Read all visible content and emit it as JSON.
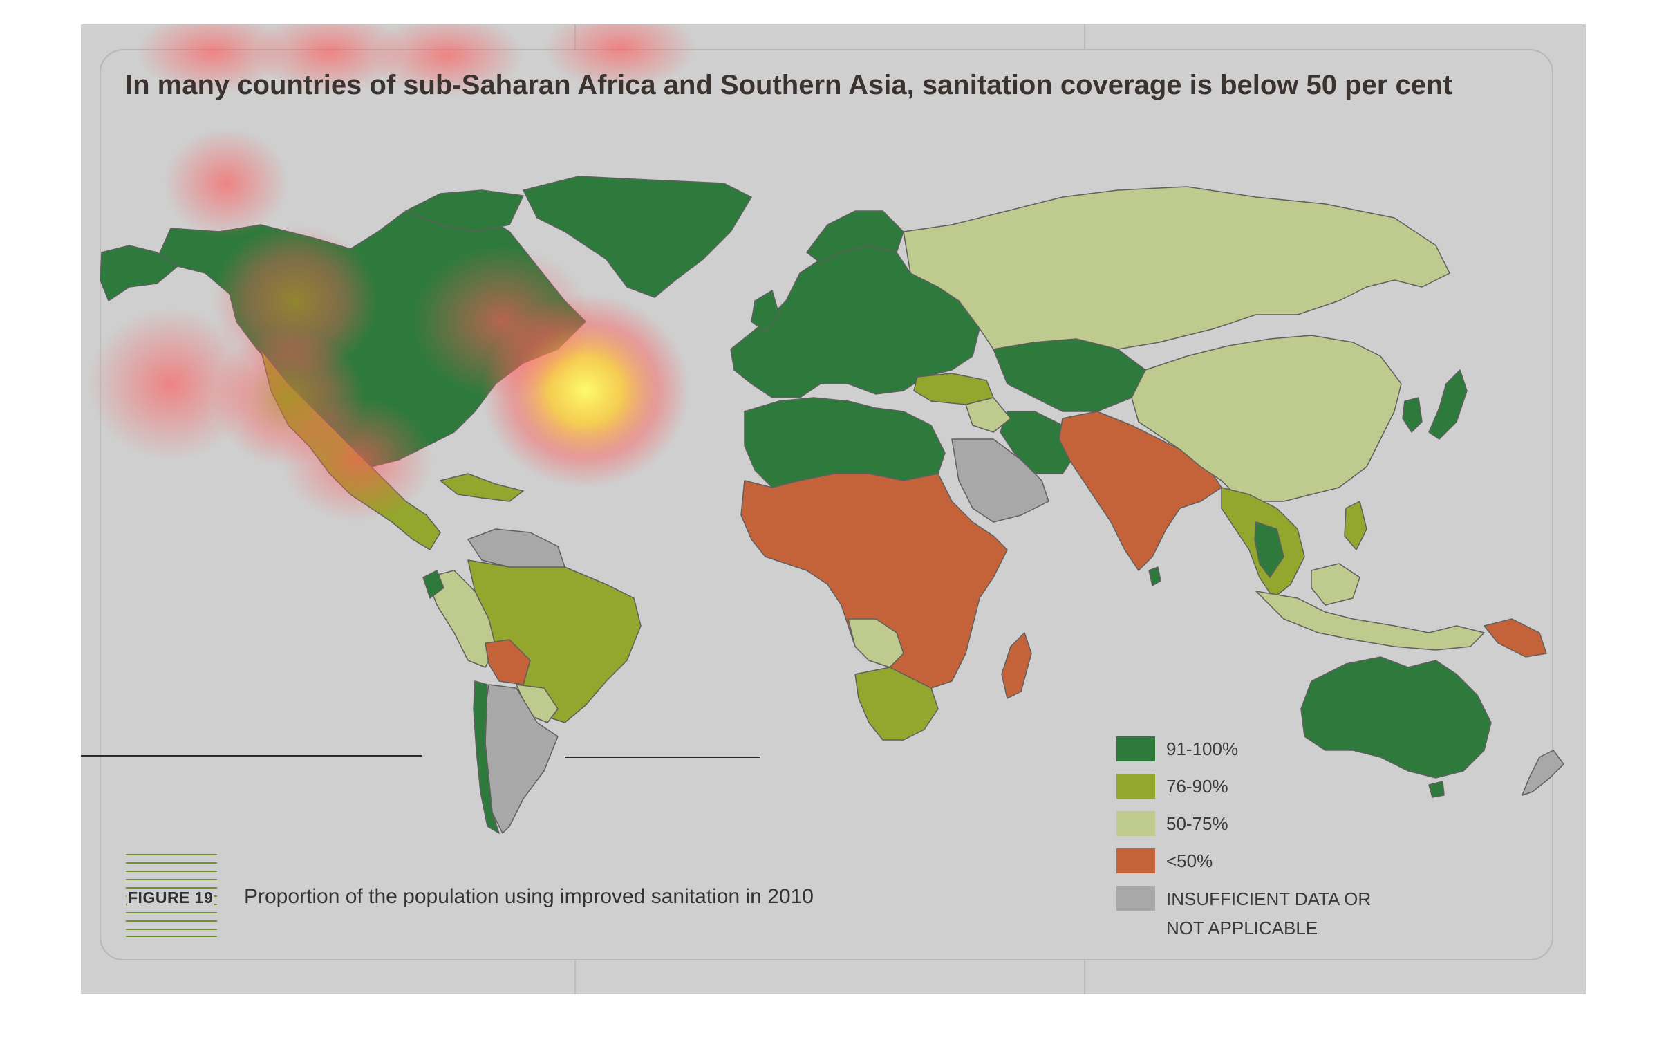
{
  "title": "In many countries of sub-Saharan Africa and Southern Asia, sanitation coverage is below 50 per cent",
  "figure": {
    "label": "FIGURE 19",
    "caption": "Proportion of the population using improved sanitation in 2010"
  },
  "legend": [
    {
      "label": "91-100%",
      "color": "#2e7a3c"
    },
    {
      "label": "76-90%",
      "color": "#93a62d"
    },
    {
      "label": "50-75%",
      "color": "#bfca8e"
    },
    {
      "label": "<50%",
      "color": "#c4633a"
    },
    {
      "label": "INSUFFICIENT DATA OR",
      "label2": "NOT APPLICABLE",
      "color": "#a8a8a8"
    }
  ],
  "colors": {
    "background": "#cfcfcf",
    "water": "#cfcfcf",
    "border": "#5f5f5f"
  },
  "regions": [
    {
      "name": "north-america",
      "category": "91-100%"
    },
    {
      "name": "greenland",
      "category": "91-100%"
    },
    {
      "name": "alaska",
      "category": "91-100%"
    },
    {
      "name": "mexico",
      "category": "76-90%"
    },
    {
      "name": "central-america",
      "category": "76-90%"
    },
    {
      "name": "venezuela-guianas",
      "category": "insufficient"
    },
    {
      "name": "brazil",
      "category": "76-90%"
    },
    {
      "name": "andes",
      "category": "50-75%"
    },
    {
      "name": "bolivia",
      "category": "<50%"
    },
    {
      "name": "argentina",
      "category": "insufficient"
    },
    {
      "name": "chile",
      "category": "91-100%"
    },
    {
      "name": "europe",
      "category": "91-100%"
    },
    {
      "name": "russia-central-asia",
      "category": "50-75%"
    },
    {
      "name": "kazakhstan-iran",
      "category": "91-100%"
    },
    {
      "name": "turkey",
      "category": "76-90%"
    },
    {
      "name": "north-africa",
      "category": "91-100%"
    },
    {
      "name": "arabia",
      "category": "insufficient"
    },
    {
      "name": "sub-saharan-africa",
      "category": "<50%"
    },
    {
      "name": "southern-africa",
      "category": "76-90%"
    },
    {
      "name": "angola-zambia",
      "category": "50-75%"
    },
    {
      "name": "madagascar",
      "category": "<50%"
    },
    {
      "name": "south-asia",
      "category": "<50%"
    },
    {
      "name": "china",
      "category": "50-75%"
    },
    {
      "name": "japan-korea",
      "category": "91-100%"
    },
    {
      "name": "southeast-asia",
      "category": "76-90%"
    },
    {
      "name": "indonesia",
      "category": "50-75%"
    },
    {
      "name": "papua-new-guinea",
      "category": "<50%"
    },
    {
      "name": "australia",
      "category": "91-100%"
    },
    {
      "name": "new-zealand",
      "category": "insufficient"
    }
  ]
}
